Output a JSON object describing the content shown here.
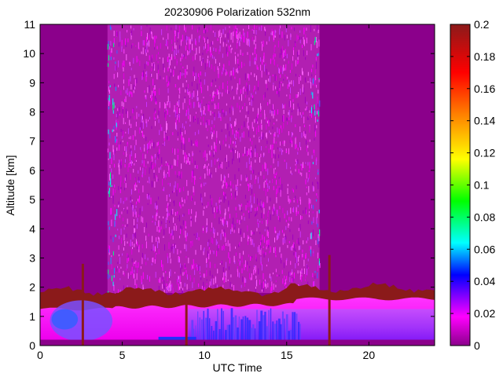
{
  "chart_data": {
    "type": "heatmap",
    "title": "20230906 Polarization 532nm",
    "xlabel": "UTC Time",
    "ylabel": "Altitude [km]",
    "xlim": [
      0,
      24
    ],
    "ylim": [
      0,
      11
    ],
    "x_ticks": [
      "0",
      "5",
      "10",
      "15",
      "20"
    ],
    "y_ticks": [
      "0",
      "1",
      "2",
      "3",
      "4",
      "5",
      "6",
      "7",
      "8",
      "9",
      "10",
      "11"
    ],
    "colorbar": {
      "range": [
        0,
        0.2
      ],
      "ticks": [
        "0",
        "0.02",
        "0.04",
        "0.06",
        "0.08",
        "0.1",
        "0.12",
        "0.14",
        "0.16",
        "0.18",
        "0.2"
      ],
      "colormap": [
        "#8b008b",
        "#ff00ff",
        "#0000ff",
        "#00ffff",
        "#00ff00",
        "#ffff00",
        "#ff8000",
        "#ff0000",
        "#8b1a1a"
      ]
    },
    "background_color": "#8b008b",
    "features": [
      {
        "name": "daytime noisy region",
        "x": [
          4.1,
          17.0
        ],
        "y": [
          1.8,
          11
        ],
        "value": 0.015
      },
      {
        "name": "boundary layer",
        "x": [
          0,
          24
        ],
        "y": [
          0.2,
          1.6
        ],
        "value": 0.02
      },
      {
        "name": "depolarizing aerosol layer early",
        "x": [
          0.5,
          4.5
        ],
        "y": [
          0.5,
          1.2
        ],
        "value": 0.045
      },
      {
        "name": "depolarizing aerosol layer midday",
        "x": [
          9.5,
          15.5
        ],
        "y": [
          0.2,
          1.2
        ],
        "value": 0.04
      },
      {
        "name": "cloud top / residual layer edge",
        "x": [
          0,
          24
        ],
        "y": [
          1.4,
          1.9
        ],
        "value": 0.19
      },
      {
        "name": "cloud spikes",
        "x": [
          2.6,
          17.6
        ],
        "y": [
          0,
          3.0
        ],
        "value": 0.19
      }
    ]
  }
}
